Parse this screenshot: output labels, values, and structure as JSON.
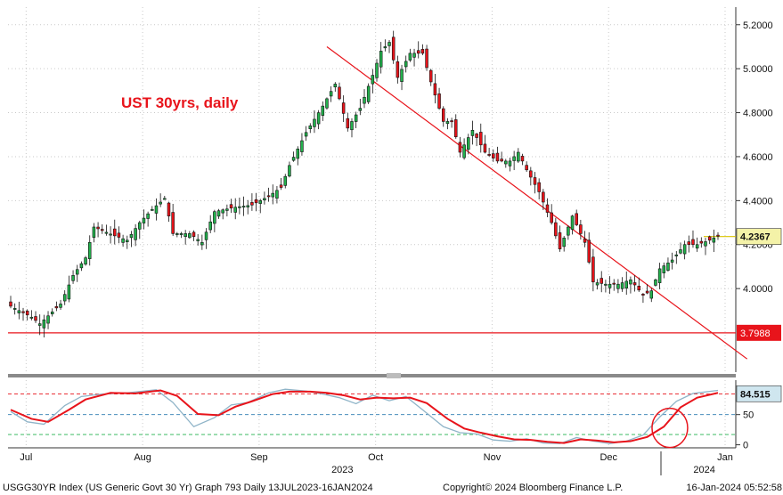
{
  "chart_data": {
    "type": "candlestick",
    "title": "UST 30yrs, daily",
    "title_color": "#e8141b",
    "up_color": "#22b14c",
    "down_color": "#e8141b",
    "price_panel": {
      "ylim": [
        3.62,
        5.28
      ],
      "yticks": [
        {
          "value": 4.0,
          "label": "4.0000"
        },
        {
          "value": 4.2,
          "label": "4.2000"
        },
        {
          "value": 4.4,
          "label": "4.4000"
        },
        {
          "value": 4.6,
          "label": "4.6000"
        },
        {
          "value": 4.8,
          "label": "4.8000"
        },
        {
          "value": 5.0,
          "label": "5.0000"
        },
        {
          "value": 5.2,
          "label": "5.2000"
        }
      ],
      "last_price": {
        "value": 4.2367,
        "label": "4.2367"
      },
      "support": {
        "value": 3.7988,
        "label": "3.7988",
        "color": "#e8141b"
      },
      "trendline": {
        "from": {
          "index": 76,
          "value": 5.1
        },
        "to": {
          "index": 177,
          "value": 3.68
        },
        "color": "#e8141b"
      }
    },
    "rsi_panel": {
      "ylim": [
        -5,
        107
      ],
      "yticks": [
        {
          "value": 0,
          "label": "0"
        },
        {
          "value": 50,
          "label": "50"
        }
      ],
      "last_value": {
        "value": 84.515,
        "label": "84.515"
      },
      "levels": [
        {
          "value": 84,
          "color": "#e8141b"
        },
        {
          "value": 50,
          "color": "#2a7ab0"
        },
        {
          "value": 17,
          "color": "#22b14c"
        }
      ]
    },
    "x_axis": {
      "months": [
        {
          "label": "Jul",
          "index": 2
        },
        {
          "label": "Aug",
          "index": 30
        },
        {
          "label": "Sep",
          "index": 58
        },
        {
          "label": "Oct",
          "index": 86
        },
        {
          "label": "Nov",
          "index": 114
        },
        {
          "label": "Dec",
          "index": 142
        },
        {
          "label": "Jan",
          "index": 170
        }
      ],
      "years": [
        {
          "label": "2023",
          "index": 78
        },
        {
          "label": "2024",
          "index": 165
        }
      ]
    },
    "dates": [
      "2023-07-13",
      "2024-01-16"
    ],
    "ohlc_close_path": [
      [
        0,
        3.92
      ],
      [
        5,
        3.87
      ],
      [
        7,
        3.84
      ],
      [
        12,
        3.93
      ],
      [
        15,
        4.06
      ],
      [
        18,
        4.14
      ],
      [
        20,
        4.28
      ],
      [
        25,
        4.24
      ],
      [
        28,
        4.22
      ],
      [
        31,
        4.3
      ],
      [
        34,
        4.36
      ],
      [
        37,
        4.41
      ],
      [
        39,
        4.25
      ],
      [
        43,
        4.25
      ],
      [
        46,
        4.21
      ],
      [
        49,
        4.35
      ],
      [
        54,
        4.37
      ],
      [
        58,
        4.38
      ],
      [
        62,
        4.42
      ],
      [
        65,
        4.46
      ],
      [
        67,
        4.56
      ],
      [
        71,
        4.71
      ],
      [
        75,
        4.83
      ],
      [
        78,
        4.93
      ],
      [
        81,
        4.73
      ],
      [
        84,
        4.82
      ],
      [
        87,
        4.97
      ],
      [
        89,
        5.08
      ],
      [
        91,
        5.12
      ],
      [
        93,
        4.96
      ],
      [
        96,
        5.07
      ],
      [
        99,
        5.07
      ],
      [
        101,
        4.94
      ],
      [
        104,
        4.76
      ],
      [
        106,
        4.76
      ],
      [
        108,
        4.62
      ],
      [
        111,
        4.72
      ],
      [
        114,
        4.62
      ],
      [
        117,
        4.58
      ],
      [
        120,
        4.58
      ],
      [
        122,
        4.62
      ],
      [
        124,
        4.54
      ],
      [
        127,
        4.44
      ],
      [
        130,
        4.3
      ],
      [
        132,
        4.18
      ],
      [
        135,
        4.33
      ],
      [
        138,
        4.21
      ],
      [
        140,
        4.03
      ],
      [
        143,
        4.02
      ],
      [
        146,
        4.02
      ],
      [
        149,
        4.04
      ],
      [
        152,
        3.97
      ],
      [
        154,
        3.99
      ],
      [
        156,
        4.09
      ],
      [
        159,
        4.13
      ],
      [
        162,
        4.2
      ],
      [
        165,
        4.2
      ],
      [
        168,
        4.22
      ],
      [
        170,
        4.24
      ]
    ],
    "rsi_path": [
      [
        0,
        58
      ],
      [
        5,
        43
      ],
      [
        9,
        38
      ],
      [
        14,
        58
      ],
      [
        18,
        75
      ],
      [
        24,
        86
      ],
      [
        30,
        85
      ],
      [
        36,
        90
      ],
      [
        40,
        81
      ],
      [
        45,
        51
      ],
      [
        50,
        49
      ],
      [
        54,
        63
      ],
      [
        58,
        72
      ],
      [
        63,
        84
      ],
      [
        67,
        88
      ],
      [
        72,
        88
      ],
      [
        76,
        86
      ],
      [
        80,
        82
      ],
      [
        84,
        75
      ],
      [
        88,
        78
      ],
      [
        92,
        77
      ],
      [
        96,
        78
      ],
      [
        100,
        69
      ],
      [
        105,
        43
      ],
      [
        109,
        27
      ],
      [
        113,
        20
      ],
      [
        117,
        14
      ],
      [
        121,
        9
      ],
      [
        125,
        8
      ],
      [
        129,
        5
      ],
      [
        133,
        3
      ],
      [
        137,
        9
      ],
      [
        141,
        7
      ],
      [
        145,
        4
      ],
      [
        149,
        6
      ],
      [
        153,
        13
      ],
      [
        157,
        30
      ],
      [
        161,
        62
      ],
      [
        165,
        78
      ],
      [
        170,
        86
      ]
    ],
    "rsi_fast_path": [
      [
        0,
        55
      ],
      [
        4,
        38
      ],
      [
        8,
        34
      ],
      [
        13,
        65
      ],
      [
        17,
        80
      ],
      [
        22,
        84
      ],
      [
        28,
        86
      ],
      [
        35,
        91
      ],
      [
        39,
        70
      ],
      [
        44,
        30
      ],
      [
        49,
        45
      ],
      [
        53,
        66
      ],
      [
        57,
        70
      ],
      [
        62,
        86
      ],
      [
        66,
        92
      ],
      [
        71,
        89
      ],
      [
        75,
        84
      ],
      [
        79,
        78
      ],
      [
        83,
        68
      ],
      [
        87,
        82
      ],
      [
        91,
        73
      ],
      [
        95,
        80
      ],
      [
        99,
        58
      ],
      [
        104,
        30
      ],
      [
        108,
        20
      ],
      [
        112,
        18
      ],
      [
        116,
        8
      ],
      [
        120,
        6
      ],
      [
        124,
        10
      ],
      [
        128,
        3
      ],
      [
        132,
        2
      ],
      [
        136,
        12
      ],
      [
        140,
        6
      ],
      [
        144,
        2
      ],
      [
        148,
        6
      ],
      [
        152,
        16
      ],
      [
        156,
        46
      ],
      [
        160,
        72
      ],
      [
        164,
        85
      ],
      [
        170,
        90
      ]
    ],
    "rsi_fast_color": "#8fb4c8",
    "rsi_color": "#e8141b"
  },
  "footer": {
    "left": "USGG30YR Index (US Generic Govt 30 Yr) Graph 793  Daily 13JUL2023-16JAN2024",
    "center": "Copyright© 2024 Bloomberg Finance L.P.",
    "right": "16-Jan-2024 05:52:58"
  }
}
